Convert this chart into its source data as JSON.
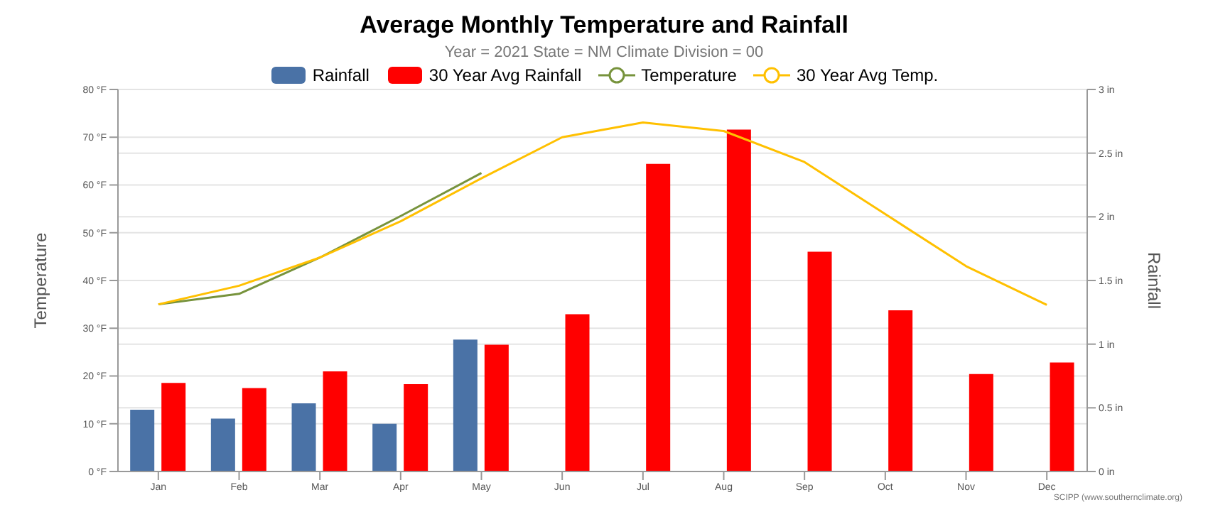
{
  "chart_data": {
    "type": "bar",
    "title": "Average Monthly Temperature and Rainfall",
    "subtitle": "Year = 2021 State = NM Climate Division = 00",
    "ylabel": "Temperature",
    "y2label": "Rainfall",
    "categories": [
      "Jan",
      "Feb",
      "Mar",
      "Apr",
      "May",
      "Jun",
      "Jul",
      "Aug",
      "Sep",
      "Oct",
      "Nov",
      "Dec"
    ],
    "series": [
      {
        "name": "Rainfall",
        "axis": "y2",
        "color": "#4a72a6",
        "values": [
          0.48,
          0.41,
          0.53,
          0.37,
          1.03,
          null,
          null,
          null,
          null,
          null,
          null,
          null
        ]
      },
      {
        "name": "30 Year Avg Rainfall",
        "axis": "y2",
        "color": "#ff0000",
        "values": [
          0.69,
          0.65,
          0.78,
          0.68,
          0.99,
          1.23,
          2.41,
          2.68,
          1.72,
          1.26,
          0.76,
          0.85
        ]
      },
      {
        "name": "Temperature",
        "type": "line",
        "color": "#77933c",
        "values": [
          35.0,
          37.2,
          44.8,
          53.5,
          62.5,
          null,
          null,
          null,
          null,
          null,
          null,
          null
        ]
      },
      {
        "name": "30 Year Avg Temp.",
        "type": "line",
        "color": "#ffc000",
        "values": [
          35.0,
          38.9,
          44.8,
          52.4,
          61.4,
          70.0,
          73.1,
          71.3,
          64.8,
          53.9,
          43.0,
          34.9
        ]
      }
    ],
    "ylim": [
      0,
      80
    ],
    "yticks": [
      {
        "value": 0,
        "label": "0 °F"
      },
      {
        "value": 10,
        "label": "10 °F"
      },
      {
        "value": 20,
        "label": "20 °F"
      },
      {
        "value": 30,
        "label": "30 °F"
      },
      {
        "value": 40,
        "label": "40 °F"
      },
      {
        "value": 50,
        "label": "50 °F"
      },
      {
        "value": 60,
        "label": "60 °F"
      },
      {
        "value": 70,
        "label": "70 °F"
      },
      {
        "value": 80,
        "label": "80 °F"
      }
    ],
    "y2lim": [
      0,
      3
    ],
    "y2ticks": [
      {
        "value": 0,
        "label": "0 in"
      },
      {
        "value": 0.5,
        "label": "0.5 in"
      },
      {
        "value": 1,
        "label": "1 in"
      },
      {
        "value": 1.5,
        "label": "1.5 in"
      },
      {
        "value": 2,
        "label": "2 in"
      },
      {
        "value": 2.5,
        "label": "2.5 in"
      },
      {
        "value": 3,
        "label": "3 in"
      }
    ],
    "grid": "y",
    "legend": "top",
    "marker": "none",
    "line_style": "solid",
    "annotations": [
      "SCIPP (www.southernclimate.org)"
    ]
  }
}
